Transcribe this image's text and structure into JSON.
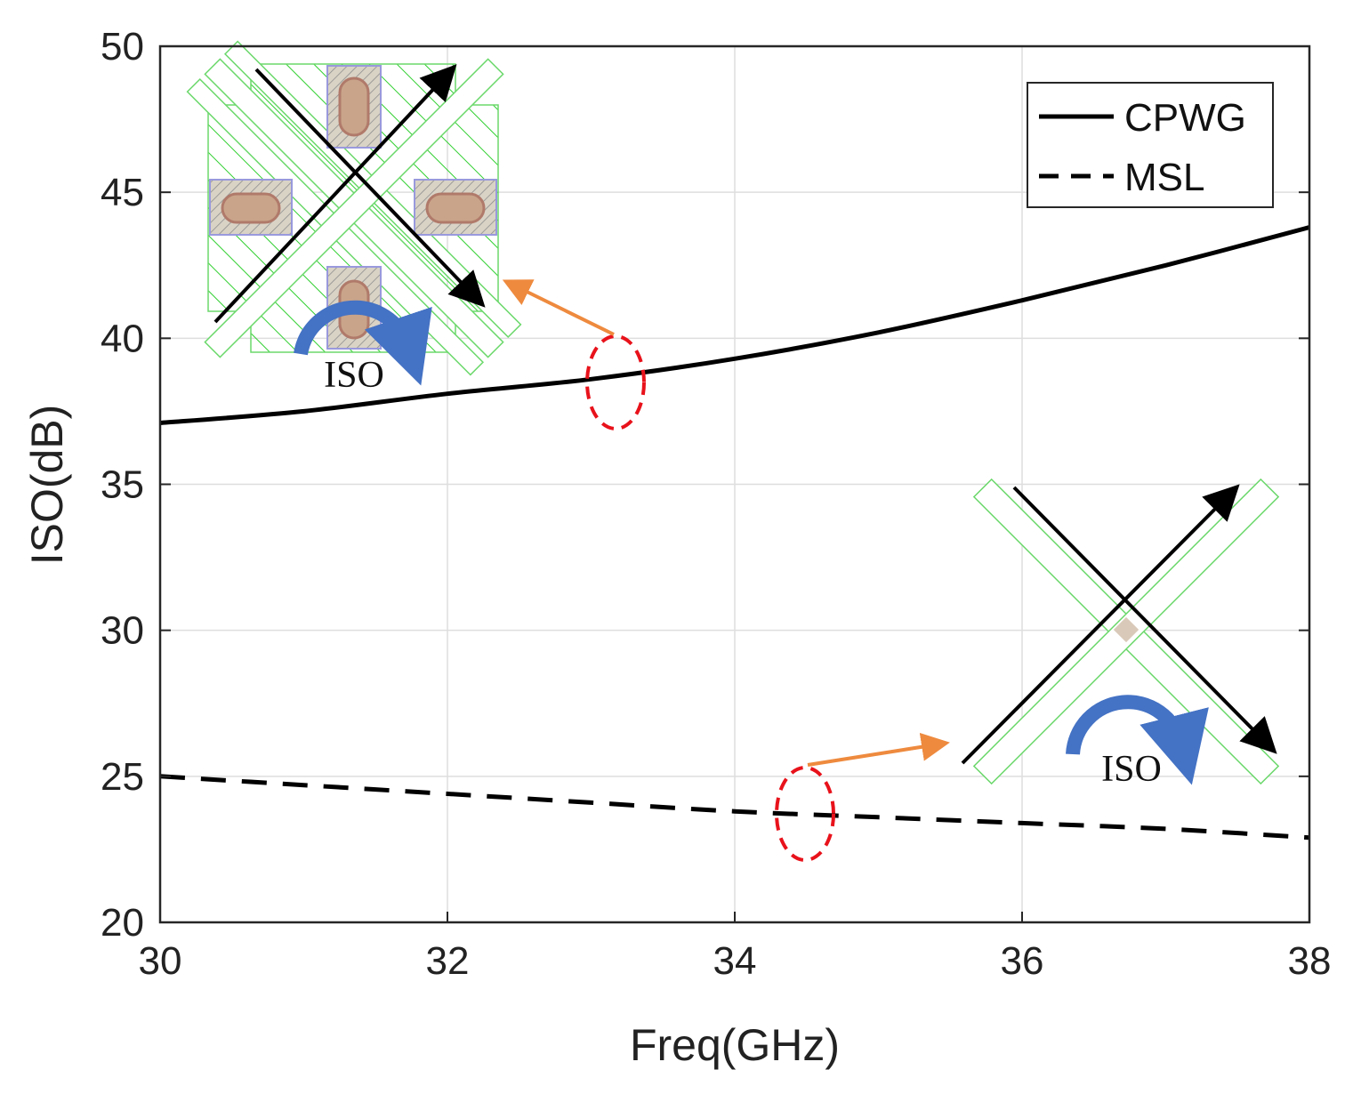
{
  "chart_data": {
    "type": "line",
    "title": "",
    "xlabel": "Freq(GHz)",
    "ylabel": "ISO(dB)",
    "xlim": [
      30,
      38
    ],
    "ylim": [
      20,
      50
    ],
    "xticks": [
      30,
      32,
      34,
      36,
      38
    ],
    "yticks": [
      20,
      25,
      30,
      35,
      40,
      45,
      50
    ],
    "grid": true,
    "legend_position": "top-right",
    "series": [
      {
        "name": "CPWG",
        "style": "solid",
        "x": [
          30,
          31,
          32,
          33,
          34,
          35,
          36,
          37,
          38
        ],
        "y": [
          37.1,
          37.5,
          38.1,
          38.6,
          39.3,
          40.2,
          41.3,
          42.5,
          43.8
        ]
      },
      {
        "name": "MSL",
        "style": "dashed",
        "x": [
          30,
          31,
          32,
          33,
          34,
          35,
          36,
          37,
          38
        ],
        "y": [
          25.0,
          24.7,
          24.4,
          24.1,
          23.8,
          23.6,
          23.4,
          23.2,
          22.9
        ]
      }
    ],
    "annotations": [
      {
        "label": "ISO",
        "target_series": "CPWG",
        "at_x": 33.2
      },
      {
        "label": "ISO",
        "target_series": "MSL",
        "at_x": 34.5
      }
    ]
  },
  "colors": {
    "line": "#000000",
    "grid": "#dedede",
    "axis": "#262626",
    "ellipse": "#e8121b",
    "pointer_arrow": "#ee8a3e",
    "rotation_arrow": "#4472c4",
    "hatch_green": "#2fcf2f",
    "pad_fill": "#c9b79d",
    "pad_outline": "#9999dd"
  },
  "icons": {
    "cpwg_inset": "cpwg-crossover-layout-icon",
    "msl_inset": "msl-crossover-layout-icon"
  }
}
